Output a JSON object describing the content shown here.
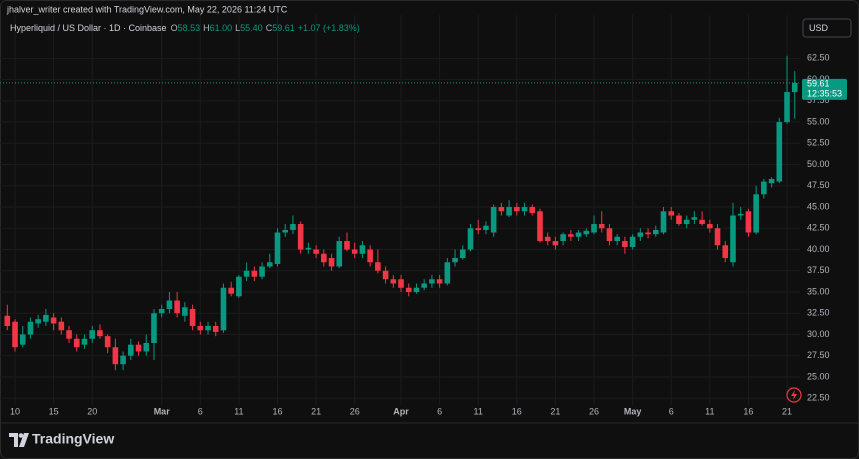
{
  "header": {
    "attribution": "jhalver_writer created with TradingView.com, May 22, 2026 11:24 UTC",
    "symbol": "Hyperliquid / US Dollar · 1D · Coinbase",
    "ohlc": [
      {
        "key": "O",
        "value": "58.53"
      },
      {
        "key": "H",
        "value": "61.00"
      },
      {
        "key": "L",
        "value": "55.40"
      },
      {
        "key": "C",
        "value": "59.61"
      }
    ],
    "change": "+1.07 (+1.83%)"
  },
  "currency": "USD",
  "footer": "TradingView",
  "chart_data": {
    "type": "candlestick",
    "x": [
      "Feb 9",
      "Feb 10",
      "Feb 11",
      "Feb 12",
      "Feb 13",
      "Feb 14",
      "Feb 15",
      "Feb 16",
      "Feb 17",
      "Feb 18",
      "Feb 19",
      "Feb 20",
      "Feb 21",
      "Feb 22",
      "Feb 23",
      "Feb 24",
      "Feb 25",
      "Feb 26",
      "Feb 27",
      "Feb 28",
      "Mar 1",
      "Mar 2",
      "Mar 3",
      "Mar 4",
      "Mar 5",
      "Mar 6",
      "Mar 7",
      "Mar 8",
      "Mar 9",
      "Mar 10",
      "Mar 11",
      "Mar 12",
      "Mar 13",
      "Mar 14",
      "Mar 15",
      "Mar 16",
      "Mar 17",
      "Mar 18",
      "Mar 19",
      "Mar 20",
      "Mar 21",
      "Mar 22",
      "Mar 23",
      "Mar 24",
      "Mar 25",
      "Mar 26",
      "Mar 27",
      "Mar 28",
      "Mar 29",
      "Mar 30",
      "Mar 31",
      "Apr 1",
      "Apr 2",
      "Apr 3",
      "Apr 4",
      "Apr 5",
      "Apr 6",
      "Apr 7",
      "Apr 8",
      "Apr 9",
      "Apr 10",
      "Apr 11",
      "Apr 12",
      "Apr 13",
      "Apr 14",
      "Apr 15",
      "Apr 16",
      "Apr 17",
      "Apr 18",
      "Apr 19",
      "Apr 20",
      "Apr 21",
      "Apr 22",
      "Apr 23",
      "Apr 24",
      "Apr 25",
      "Apr 26",
      "Apr 27",
      "Apr 28",
      "Apr 29",
      "Apr 30",
      "May 1",
      "May 2",
      "May 3",
      "May 4",
      "May 5",
      "May 6",
      "May 7",
      "May 8",
      "May 9",
      "May 10",
      "May 11",
      "May 12",
      "May 13",
      "May 14",
      "May 15",
      "May 16",
      "May 17",
      "May 18",
      "May 19",
      "May 20",
      "May 21",
      "May 22"
    ],
    "open": [
      32.2,
      31.5,
      28.8,
      30.0,
      31.3,
      31.5,
      32.0,
      31.5,
      30.5,
      29.5,
      28.8,
      29.5,
      30.5,
      29.8,
      28.5,
      26.5,
      27.5,
      28.8,
      28.0,
      29.0,
      32.5,
      33.0,
      34.0,
      32.2,
      33.0,
      31.0,
      30.5,
      31.0,
      30.5,
      35.5,
      34.5,
      36.8,
      37.5,
      36.8,
      38.0,
      38.3,
      42.0,
      42.3,
      43.0,
      40.0,
      40.0,
      39.5,
      39.0,
      38.0,
      41.0,
      40.0,
      39.5,
      40.0,
      38.5,
      37.5,
      36.5,
      36.5,
      35.5,
      35.0,
      35.5,
      36.0,
      36.5,
      36.0,
      38.5,
      39.0,
      40.0,
      42.5,
      42.3,
      42.0,
      45.0,
      44.0,
      45.0,
      44.5,
      45.0,
      44.5,
      41.5,
      41.0,
      41.0,
      41.8,
      41.5,
      41.8,
      42.0,
      43.0,
      42.5,
      41.0,
      41.0,
      40.3,
      41.5,
      42.0,
      41.8,
      42.0,
      44.5,
      44.0,
      43.0,
      43.5,
      43.5,
      43.0,
      42.5,
      40.5,
      38.5,
      44.0,
      44.5,
      42.0,
      46.5,
      47.8,
      48.0,
      55.0,
      58.53
    ],
    "high": [
      33.5,
      31.8,
      31.0,
      32.0,
      32.3,
      33.0,
      32.5,
      32.0,
      31.0,
      30.0,
      30.0,
      31.0,
      31.2,
      30.0,
      29.5,
      28.0,
      29.5,
      29.2,
      30.0,
      33.0,
      33.5,
      35.0,
      35.0,
      33.8,
      33.5,
      31.5,
      31.5,
      31.5,
      36.0,
      36.2,
      37.0,
      38.5,
      38.0,
      38.5,
      39.5,
      42.5,
      43.0,
      44.0,
      43.3,
      40.8,
      40.5,
      40.0,
      39.5,
      41.5,
      42.0,
      40.8,
      41.0,
      40.5,
      40.0,
      38.0,
      37.0,
      37.0,
      36.0,
      36.0,
      36.5,
      37.0,
      37.0,
      39.0,
      40.0,
      40.5,
      43.0,
      43.5,
      43.3,
      45.3,
      45.5,
      45.8,
      45.5,
      45.5,
      45.3,
      44.8,
      42.0,
      41.5,
      42.0,
      42.3,
      42.3,
      42.5,
      44.0,
      44.5,
      43.0,
      41.8,
      41.5,
      41.8,
      42.5,
      42.5,
      42.8,
      45.0,
      45.0,
      44.3,
      44.0,
      44.5,
      44.5,
      43.5,
      43.0,
      41.0,
      45.5,
      45.0,
      44.8,
      47.5,
      48.3,
      48.5,
      55.5,
      62.8,
      61.0
    ],
    "low": [
      30.5,
      28.0,
      28.5,
      29.5,
      30.8,
      31.0,
      30.5,
      30.0,
      29.0,
      28.0,
      28.3,
      29.0,
      29.5,
      27.8,
      25.8,
      25.8,
      27.0,
      27.5,
      27.5,
      27.0,
      32.0,
      32.5,
      32.0,
      31.5,
      30.5,
      30.0,
      30.0,
      29.8,
      30.2,
      34.5,
      34.3,
      36.3,
      36.3,
      36.5,
      37.8,
      38.0,
      41.5,
      41.8,
      39.5,
      39.5,
      39.0,
      38.0,
      37.5,
      37.8,
      39.8,
      39.0,
      39.0,
      38.0,
      37.2,
      36.0,
      35.5,
      35.0,
      34.5,
      34.8,
      35.2,
      35.5,
      35.5,
      35.8,
      38.0,
      38.8,
      39.8,
      41.8,
      41.8,
      41.5,
      44.0,
      43.8,
      44.0,
      44.0,
      44.0,
      40.8,
      40.5,
      40.0,
      40.5,
      41.0,
      41.0,
      41.5,
      41.8,
      42.0,
      40.5,
      40.5,
      39.5,
      40.0,
      41.0,
      41.3,
      41.5,
      41.8,
      43.5,
      42.8,
      42.5,
      43.0,
      42.8,
      42.0,
      40.0,
      38.5,
      38.0,
      43.5,
      41.5,
      41.8,
      46.0,
      47.3,
      47.8,
      54.8,
      55.4
    ],
    "close": [
      31.0,
      28.5,
      30.0,
      31.5,
      31.8,
      32.3,
      31.3,
      30.5,
      29.5,
      28.5,
      29.5,
      30.5,
      29.8,
      28.5,
      26.5,
      27.5,
      28.8,
      28.0,
      29.0,
      32.5,
      33.0,
      34.0,
      32.5,
      33.2,
      31.0,
      30.5,
      31.0,
      30.3,
      35.5,
      34.8,
      36.8,
      37.5,
      36.8,
      38.0,
      38.5,
      42.0,
      42.3,
      43.0,
      40.0,
      40.2,
      39.5,
      38.5,
      38.0,
      41.0,
      40.0,
      39.5,
      40.5,
      38.5,
      37.5,
      36.5,
      36.0,
      35.5,
      35.0,
      35.5,
      36.0,
      36.5,
      36.0,
      38.5,
      39.0,
      40.0,
      42.5,
      42.3,
      42.8,
      45.0,
      44.5,
      45.0,
      44.5,
      45.0,
      44.3,
      41.0,
      41.0,
      40.5,
      41.8,
      41.5,
      42.0,
      42.2,
      43.0,
      42.5,
      41.0,
      41.5,
      40.3,
      41.5,
      42.0,
      41.8,
      42.3,
      44.5,
      44.0,
      43.0,
      43.5,
      43.8,
      43.0,
      42.5,
      40.5,
      39.0,
      44.0,
      44.2,
      42.0,
      46.5,
      48.0,
      48.3,
      55.0,
      58.54,
      59.61
    ],
    "up_color": "#089981",
    "down_color": "#f23645",
    "ylim": [
      21.7,
      67.6
    ],
    "yticks": [
      {
        "value": 22.5,
        "label": "22.50"
      },
      {
        "value": 25,
        "label": "25.00"
      },
      {
        "value": 27.5,
        "label": "27.50"
      },
      {
        "value": 30,
        "label": "30.00"
      },
      {
        "value": 32.5,
        "label": "32.50"
      },
      {
        "value": 35,
        "label": "35.00"
      },
      {
        "value": 37.5,
        "label": "37.50"
      },
      {
        "value": 40,
        "label": "40.00"
      },
      {
        "value": 42.5,
        "label": "42.50"
      },
      {
        "value": 45,
        "label": "45.00"
      },
      {
        "value": 47.5,
        "label": "47.50"
      },
      {
        "value": 50,
        "label": "50.00"
      },
      {
        "value": 52.5,
        "label": "52.50"
      },
      {
        "value": 55,
        "label": "55.00"
      },
      {
        "value": 57.5,
        "label": "57.50"
      },
      {
        "value": 60,
        "label": "60.00"
      },
      {
        "value": 62.5,
        "label": "62.50"
      }
    ],
    "xticks": [
      {
        "value": "Feb 10",
        "label": "10"
      },
      {
        "value": "Feb 15",
        "label": "15"
      },
      {
        "value": "Feb 20",
        "label": "20"
      },
      {
        "value": "Mar 1",
        "label": "Mar"
      },
      {
        "value": "Mar 6",
        "label": "6"
      },
      {
        "value": "Mar 11",
        "label": "11"
      },
      {
        "value": "Mar 16",
        "label": "16"
      },
      {
        "value": "Mar 21",
        "label": "21"
      },
      {
        "value": "Mar 26",
        "label": "26"
      },
      {
        "value": "Apr 1",
        "label": "Apr"
      },
      {
        "value": "Apr 6",
        "label": "6"
      },
      {
        "value": "Apr 11",
        "label": "11"
      },
      {
        "value": "Apr 16",
        "label": "16"
      },
      {
        "value": "Apr 21",
        "label": "21"
      },
      {
        "value": "Apr 26",
        "label": "26"
      },
      {
        "value": "May 1",
        "label": "May"
      },
      {
        "value": "May 6",
        "label": "6"
      },
      {
        "value": "May 11",
        "label": "11"
      },
      {
        "value": "May 16",
        "label": "16"
      },
      {
        "value": "May 21",
        "label": "21"
      }
    ],
    "last_price": 59.61,
    "countdown": "12:35:53",
    "grid": true
  }
}
